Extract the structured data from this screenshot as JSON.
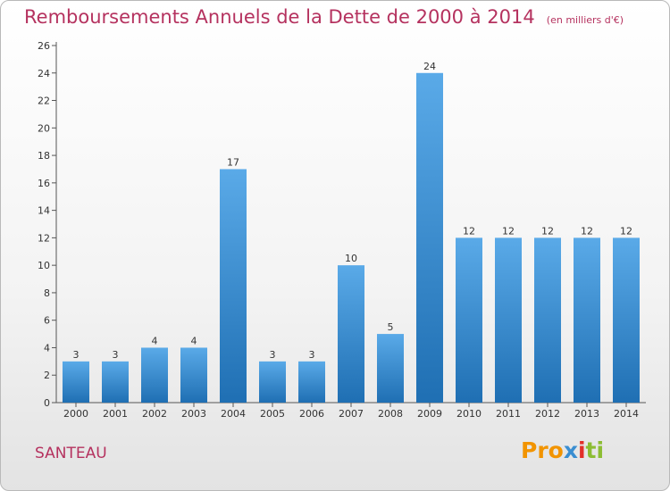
{
  "header": {
    "title": "Remboursements Annuels de la Dette de 2000 à 2014",
    "unit": "(en milliers d'€)"
  },
  "commune": "SANTEAU",
  "logo": {
    "p1": "Pro",
    "p2": "x",
    "p3": "i",
    "p4": "ti"
  },
  "colors": {
    "bar_top": "#5aaae8",
    "bar_bottom": "#1f6fb3",
    "title": "#b5325f"
  },
  "chart_data": {
    "type": "bar",
    "title": "Remboursements Annuels de la Dette de 2000 à 2014",
    "xlabel": "",
    "ylabel": "",
    "ylim": [
      0,
      26
    ],
    "yticks": [
      0,
      2,
      4,
      6,
      8,
      10,
      12,
      14,
      16,
      18,
      20,
      22,
      24,
      26
    ],
    "grid": false,
    "categories": [
      "2000",
      "2001",
      "2002",
      "2003",
      "2004",
      "2005",
      "2006",
      "2007",
      "2008",
      "2009",
      "2010",
      "2011",
      "2012",
      "2013",
      "2014"
    ],
    "values": [
      3,
      3,
      4,
      4,
      17,
      3,
      3,
      10,
      5,
      24,
      12,
      12,
      12,
      12,
      12
    ]
  }
}
